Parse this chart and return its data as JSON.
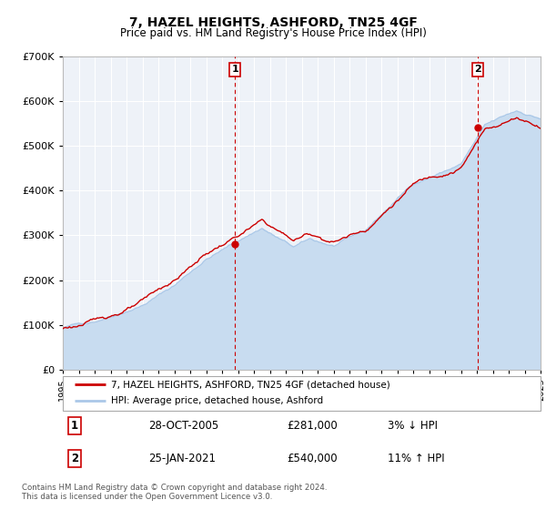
{
  "title": "7, HAZEL HEIGHTS, ASHFORD, TN25 4GF",
  "subtitle": "Price paid vs. HM Land Registry's House Price Index (HPI)",
  "legend_line1": "7, HAZEL HEIGHTS, ASHFORD, TN25 4GF (detached house)",
  "legend_line2": "HPI: Average price, detached house, Ashford",
  "sale1_label": "1",
  "sale1_date": "28-OCT-2005",
  "sale1_price": "£281,000",
  "sale1_hpi": "3% ↓ HPI",
  "sale1_year": 2005.82,
  "sale1_value": 281000,
  "sale2_label": "2",
  "sale2_date": "25-JAN-2021",
  "sale2_price": "£540,000",
  "sale2_hpi": "11% ↑ HPI",
  "sale2_year": 2021.07,
  "sale2_value": 540000,
  "footnote1": "Contains HM Land Registry data © Crown copyright and database right 2024.",
  "footnote2": "This data is licensed under the Open Government Licence v3.0.",
  "hpi_color": "#aac8e8",
  "hpi_fill_color": "#c8dcf0",
  "price_color": "#cc0000",
  "vline_color": "#cc0000",
  "plot_bg": "#eef2f8",
  "grid_color": "#ffffff",
  "ylim_min": 0,
  "ylim_max": 700000,
  "xmin": 1995,
  "xmax": 2025
}
